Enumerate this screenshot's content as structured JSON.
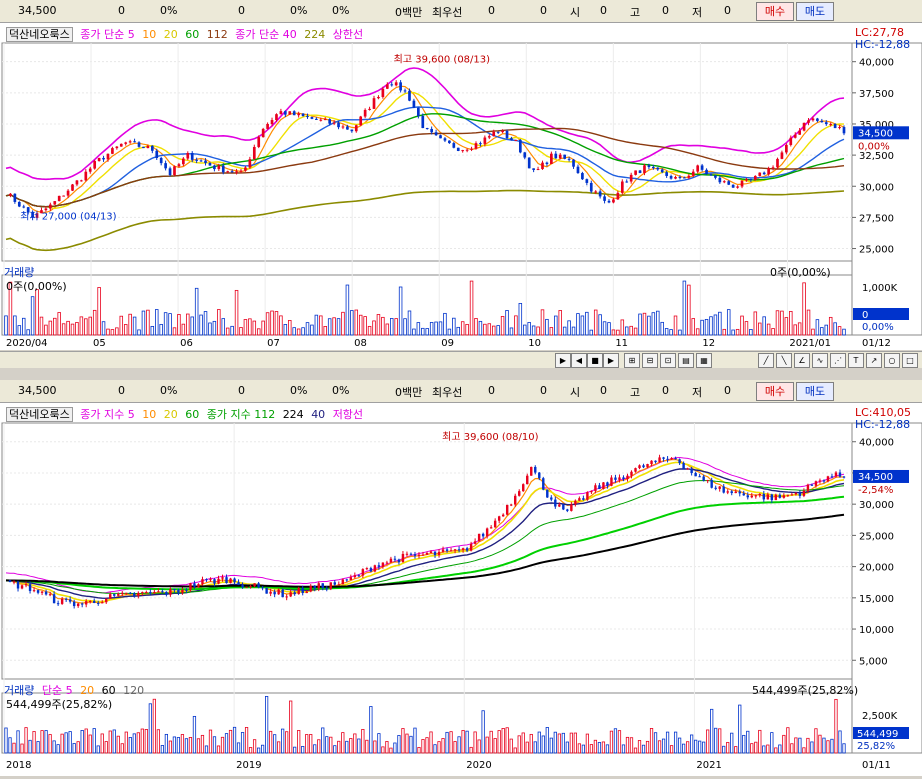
{
  "toolbar_top": {
    "price": "34,500",
    "v1": "0",
    "p1": "0%",
    "v2": "0",
    "p2": "0%",
    "p3": "0%",
    "amount": "0백만",
    "best": "최우선",
    "v3": "0",
    "v4": "0",
    "open_label": "시",
    "open": "0",
    "high_label": "고",
    "high": "0",
    "low_label": "저",
    "low": "0",
    "buy": "매수",
    "sell": "매도"
  },
  "toolbar_bottom": {
    "price": "34,500",
    "v1": "0",
    "p1": "0%",
    "v2": "0",
    "p2": "0%",
    "p3": "0%",
    "amount": "0백만",
    "best": "최우선",
    "v3": "0",
    "v4": "0",
    "open_label": "시",
    "open": "0",
    "high_label": "고",
    "high": "0",
    "low_label": "저",
    "low": "0",
    "buy": "매수",
    "sell": "매도"
  },
  "top_legend": {
    "name": "덕산네오룩스",
    "ma1_label": "종가 단순 5",
    "ma10": "10",
    "ma20": "20",
    "ma60": "60",
    "ma112": "112",
    "ma2_label": "종가 단순 40",
    "ma224": "224",
    "band": "상한선"
  },
  "bottom_legend": {
    "name": "덕산네오룩스",
    "ma1_label": "종가 지수 5",
    "ma10": "10",
    "ma20": "20",
    "ma60": "60",
    "ma2_label": "종가 지수 112",
    "ma224": "224",
    "ma40": "40",
    "band": "저항선"
  },
  "top_right_info": {
    "lc": "LC:27,78",
    "hc": "HC:-12,88"
  },
  "bottom_right_info": {
    "lc": "LC:410,05",
    "hc": "HC:-12,88"
  },
  "top_volume": {
    "label": "거래량",
    "left_value": "0주(0,00%)",
    "right_value": "0주(0,00%)",
    "axis": [
      "1,000K",
      "0",
      "0,00%"
    ]
  },
  "bottom_volume": {
    "label": "거래량",
    "ma_label": "단순 5",
    "m20": "20",
    "m60": "60",
    "m120": "120",
    "left_value": "544,499주(25,82%)",
    "right_value": "544,499주(25,82%)",
    "axis": [
      "2,500K",
      "544,499",
      "25,82%"
    ]
  },
  "colors": {
    "up": "#e8001c",
    "down": "#0033cc",
    "magenta": "#e000e0",
    "orange": "#ff8c00",
    "yellow": "#f0e000",
    "green": "#00a000",
    "brown": "#8b3a10",
    "olive": "#8b8b00",
    "blue": "#2060e0",
    "lime": "#00d000",
    "black": "#000000"
  },
  "chart_data": [
    {
      "type": "candlestick",
      "title": "",
      "x_ticks": [
        "2020/04",
        "05",
        "06",
        "07",
        "08",
        "09",
        "10",
        "11",
        "12",
        "2021/01",
        "01/12"
      ],
      "y_ticks": [
        25000,
        27500,
        30000,
        32500,
        35000,
        37500,
        40000
      ],
      "y_tick_labels": [
        "25,000",
        "27,500",
        "30,000",
        "32,500",
        "35,000",
        "37,500",
        "40,000"
      ],
      "ylim": [
        24000,
        41500
      ],
      "annotations": [
        {
          "text": "최고 39,600 (08/13)",
          "x_index": 4.3,
          "y": 39600
        },
        {
          "text": "최저 27,000 (04/13)",
          "x_index": 0.2,
          "y": 27000
        }
      ],
      "last_price": "34,500",
      "last_change": "0,00%",
      "last_level": "32,500",
      "price_path": [
        [
          0,
          29500
        ],
        [
          0.3,
          27500
        ],
        [
          0.5,
          28500
        ],
        [
          0.8,
          30500
        ],
        [
          1.0,
          32000
        ],
        [
          1.3,
          33500
        ],
        [
          1.6,
          33000
        ],
        [
          1.8,
          31000
        ],
        [
          2.0,
          32500
        ],
        [
          2.3,
          31500
        ],
        [
          2.6,
          31000
        ],
        [
          2.8,
          34500
        ],
        [
          3.0,
          36000
        ],
        [
          3.3,
          35500
        ],
        [
          3.6,
          35000
        ],
        [
          3.8,
          34500
        ],
        [
          4.0,
          36500
        ],
        [
          4.2,
          38500
        ],
        [
          4.4,
          37500
        ],
        [
          4.6,
          34500
        ],
        [
          4.8,
          33500
        ],
        [
          5.0,
          33000
        ],
        [
          5.2,
          33500
        ],
        [
          5.4,
          34500
        ],
        [
          5.6,
          33500
        ],
        [
          5.8,
          31000
        ],
        [
          6.0,
          32500
        ],
        [
          6.2,
          32000
        ],
        [
          6.4,
          30000
        ],
        [
          6.6,
          28500
        ],
        [
          6.8,
          30500
        ],
        [
          7.0,
          31500
        ],
        [
          7.2,
          31000
        ],
        [
          7.4,
          30500
        ],
        [
          7.6,
          31500
        ],
        [
          7.8,
          30500
        ],
        [
          8.0,
          30000
        ],
        [
          8.2,
          30500
        ],
        [
          8.4,
          31500
        ],
        [
          8.6,
          33500
        ],
        [
          8.8,
          35500
        ],
        [
          9.0,
          35000
        ],
        [
          9.2,
          34500
        ]
      ]
    },
    {
      "type": "candlestick",
      "title": "",
      "x_ticks": [
        "2018",
        "2019",
        "2020",
        "2021",
        "01/11"
      ],
      "y_ticks": [
        5000,
        10000,
        15000,
        20000,
        25000,
        30000,
        35000,
        40000
      ],
      "y_tick_labels": [
        "5,000",
        "10,000",
        "15,000",
        "20,000",
        "25,000",
        "30,000",
        "35,000",
        "40,000"
      ],
      "ylim": [
        2000,
        43000
      ],
      "annotations": [
        {
          "text": "최고 39,600 (08/10)",
          "x_index": 2.6,
          "y": 39600
        }
      ],
      "last_price": "34,500",
      "last_change": "-2,54%",
      "price_path": [
        [
          0,
          17500
        ],
        [
          0.15,
          16500
        ],
        [
          0.3,
          14500
        ],
        [
          0.45,
          14000
        ],
        [
          0.6,
          15000
        ],
        [
          0.75,
          15500
        ],
        [
          1.0,
          16000
        ],
        [
          1.15,
          17500
        ],
        [
          1.3,
          18000
        ],
        [
          1.5,
          16500
        ],
        [
          1.65,
          15500
        ],
        [
          1.8,
          16500
        ],
        [
          2.0,
          17500
        ],
        [
          2.2,
          20500
        ],
        [
          2.35,
          21500
        ],
        [
          2.5,
          22000
        ],
        [
          2.7,
          22500
        ],
        [
          2.85,
          26000
        ],
        [
          3.0,
          31000
        ],
        [
          3.1,
          36000
        ],
        [
          3.2,
          31500
        ],
        [
          3.3,
          28500
        ],
        [
          3.45,
          32000
        ],
        [
          3.6,
          34000
        ],
        [
          3.8,
          36500
        ],
        [
          3.95,
          37500
        ],
        [
          4.1,
          34000
        ],
        [
          4.25,
          32000
        ],
        [
          4.4,
          31500
        ],
        [
          4.55,
          31000
        ],
        [
          4.7,
          32000
        ],
        [
          4.85,
          34500
        ],
        [
          4.95,
          34500
        ]
      ]
    }
  ]
}
